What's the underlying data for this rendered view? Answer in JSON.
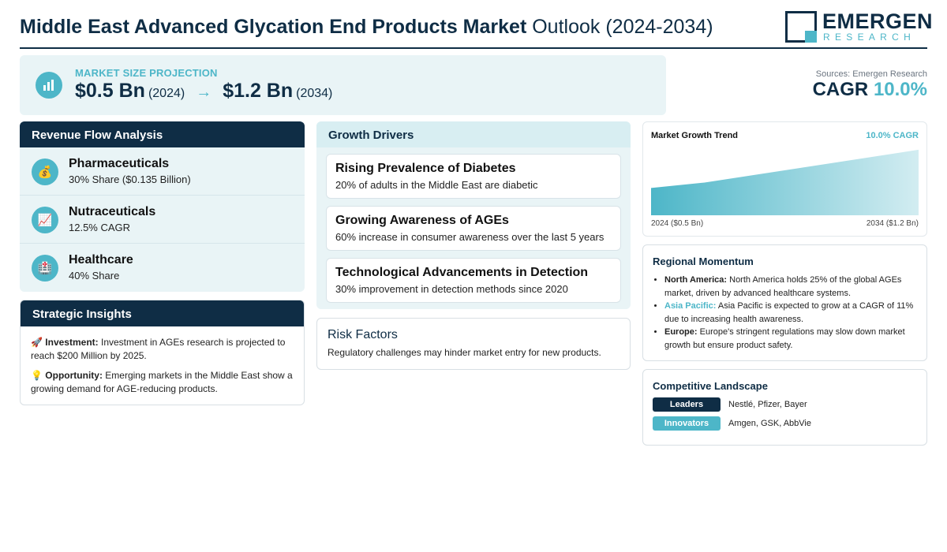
{
  "header": {
    "title_bold": "Middle East Advanced Glycation End Products Market",
    "title_light": "Outlook (2024-2034)",
    "logo_name": "EMERGEN",
    "logo_sub": "RESEARCH"
  },
  "projection": {
    "icon": "bar-chart-icon",
    "label": "MARKET SIZE PROJECTION",
    "start_value": "$0.5 Bn",
    "start_year": "(2024)",
    "arrow": "→",
    "end_value": "$1.2 Bn",
    "end_year": "(2034)"
  },
  "sources": "Sources: Emergen Research",
  "cagr": {
    "label": "CAGR",
    "value": "10.0%"
  },
  "revenue_flow": {
    "title": "Revenue Flow Analysis",
    "items": [
      {
        "icon": "money-bag-icon",
        "glyph": "💰",
        "title": "Pharmaceuticals",
        "sub": "30% Share ($0.135 Billion)"
      },
      {
        "icon": "chart-up-icon",
        "glyph": "📈",
        "title": "Nutraceuticals",
        "sub": "12.5% CAGR"
      },
      {
        "icon": "hospital-icon",
        "glyph": "🏥",
        "title": "Healthcare",
        "sub": "40% Share"
      }
    ]
  },
  "insights": {
    "title": "Strategic Insights",
    "items": [
      {
        "glyph": "🚀",
        "label": "Investment:",
        "text": " Investment in AGEs research is projected to reach $200 Million by 2025."
      },
      {
        "glyph": "💡",
        "label": "Opportunity:",
        "text": " Emerging markets in the Middle East show a growing demand for AGE-reducing products."
      }
    ]
  },
  "drivers": {
    "title": "Growth Drivers",
    "items": [
      {
        "title": "Rising Prevalence of Diabetes",
        "sub": "20% of adults in the Middle East are diabetic"
      },
      {
        "title": "Growing Awareness of AGEs",
        "sub": "60% increase in consumer awareness over the last 5 years"
      },
      {
        "title": "Technological Advancements in Detection",
        "sub": "30% improvement in detection methods since 2020"
      }
    ]
  },
  "risk": {
    "title": "Risk Factors",
    "text": "Regulatory challenges may hinder market entry for new products."
  },
  "trend": {
    "title": "Market Growth Trend",
    "cagr_label": "10.0% CAGR",
    "start_label": "2024 ($0.5 Bn)",
    "end_label": "2034 ($1.2 Bn)"
  },
  "chart_data": {
    "type": "area",
    "x": [
      2024,
      2026,
      2030,
      2034
    ],
    "values": [
      0.5,
      0.6,
      0.9,
      1.2
    ],
    "title": "Market Growth Trend",
    "xlabel": "",
    "ylabel": "",
    "ylim": [
      0,
      1.3
    ],
    "color": "#4db6c8"
  },
  "regional": {
    "title": "Regional Momentum",
    "items": [
      {
        "label": "North America:",
        "text": " North America holds 25% of the global AGEs market, driven by advanced healthcare systems.",
        "accent": false
      },
      {
        "label": "Asia Pacific:",
        "text": " Asia Pacific is expected to grow at a CAGR of 11% due to increasing health awareness.",
        "accent": true
      },
      {
        "label": "Europe:",
        "text": " Europe's stringent regulations may slow down market growth but ensure product safety.",
        "accent": false
      }
    ]
  },
  "competitive": {
    "title": "Competitive Landscape",
    "leaders_label": "Leaders",
    "leaders": "Nestlé, Pfizer, Bayer",
    "innovators_label": "Innovators",
    "innovators": "Amgen, GSK, AbbVie"
  },
  "colors": {
    "navy": "#0f2d45",
    "teal": "#4db6c8",
    "panel": "#e9f4f6"
  }
}
